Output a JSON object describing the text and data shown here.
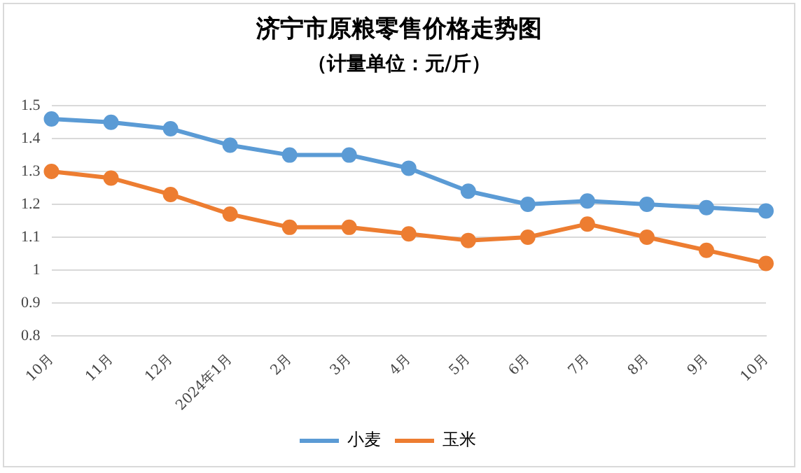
{
  "chart_data": {
    "type": "line",
    "title": "济宁市原粮零售价格走势图",
    "subtitle": "（计量单位：元/斤）",
    "categories": [
      "10月",
      "11月",
      "12月",
      "2024年1月",
      "2月",
      "3月",
      "4月",
      "5月",
      "6月",
      "7月",
      "8月",
      "9月",
      "10月"
    ],
    "series": [
      {
        "name": "小麦",
        "color": "#5b9bd5",
        "values": [
          1.46,
          1.45,
          1.43,
          1.38,
          1.35,
          1.35,
          1.31,
          1.24,
          1.2,
          1.21,
          1.2,
          1.19,
          1.18
        ]
      },
      {
        "name": "玉米",
        "color": "#ed7d31",
        "values": [
          1.3,
          1.28,
          1.23,
          1.17,
          1.13,
          1.13,
          1.11,
          1.09,
          1.1,
          1.14,
          1.1,
          1.06,
          1.02
        ]
      }
    ],
    "ylim": [
      0.8,
      1.5
    ],
    "yticks": [
      0.8,
      0.9,
      1,
      1.1,
      1.2,
      1.3,
      1.4,
      1.5
    ],
    "grid": "y",
    "legend": "bottom",
    "marker": "circle",
    "line_style": "solid"
  }
}
